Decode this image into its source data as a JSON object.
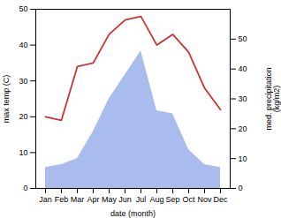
{
  "chart_data": {
    "type": "line",
    "categories": [
      "Jan",
      "Feb",
      "Mar",
      "Apr",
      "May",
      "Jun",
      "Jul",
      "Aug",
      "Sep",
      "Oct",
      "Nov",
      "Dec"
    ],
    "series": [
      {
        "type": "line",
        "color": "#cc3333",
        "values": [
          20,
          19,
          34,
          35,
          43,
          47,
          48,
          40,
          43,
          38,
          28,
          22
        ]
      },
      {
        "type": "area",
        "color": "#aabbee",
        "axis": "y2",
        "values": [
          7,
          8,
          10,
          19,
          30,
          38,
          46,
          26,
          25,
          13,
          8,
          7
        ]
      }
    ],
    "xlabel": "date (month)",
    "ylabel": "max temp (C)",
    "y2label": "med. precipitation\n(kg/m2)",
    "ylim": [
      0,
      50
    ],
    "yticks": [
      0,
      10,
      20,
      30,
      40,
      50
    ],
    "y2lim": [
      0,
      60
    ],
    "y2ticks": [
      0,
      10,
      20,
      30,
      40,
      50
    ],
    "grid": false
  }
}
